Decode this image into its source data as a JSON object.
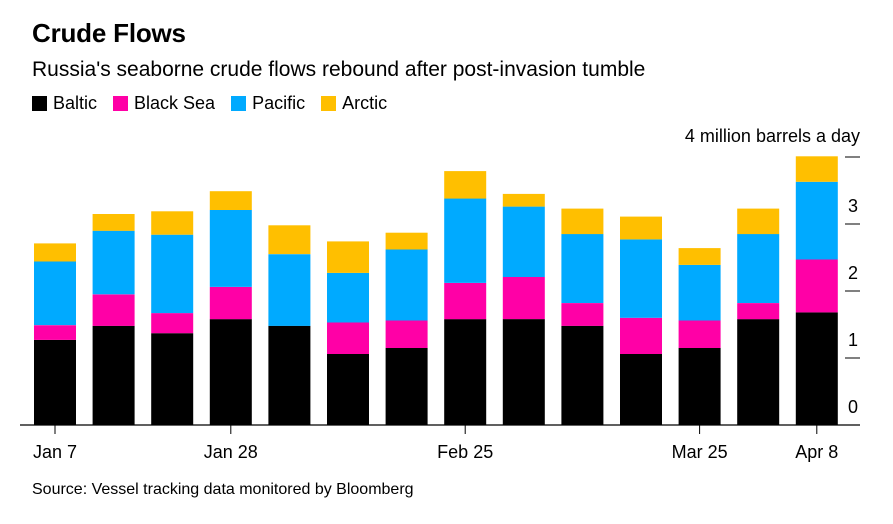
{
  "header": {
    "title": "Crude Flows",
    "subtitle": "Russia's seaborne crude flows rebound after post-invasion tumble"
  },
  "source": "Source: Vessel tracking data monitored by Bloomberg",
  "chart_data": {
    "type": "bar",
    "stacked": true,
    "unit_label": "4 million barrels a day",
    "y_ticks": [
      0,
      1,
      2,
      3
    ],
    "ylim": [
      0,
      4
    ],
    "grid": false,
    "legend_position": "top-left",
    "x_tick_labels": [
      {
        "index": 0,
        "label": "Jan 7"
      },
      {
        "index": 3,
        "label": "Jan 28"
      },
      {
        "index": 7,
        "label": "Feb 25"
      },
      {
        "index": 11,
        "label": "Mar 25"
      },
      {
        "index": 13,
        "label": "Apr 8"
      }
    ],
    "series": [
      {
        "name": "Baltic",
        "color": "#000000",
        "values": [
          1.27,
          1.48,
          1.37,
          1.58,
          1.48,
          1.06,
          1.15,
          1.58,
          1.58,
          1.48,
          1.06,
          1.15,
          1.58,
          1.68
        ]
      },
      {
        "name": "Black Sea",
        "color": "#ff00a6",
        "values": [
          0.22,
          0.47,
          0.3,
          0.48,
          0.0,
          0.47,
          0.41,
          0.54,
          0.63,
          0.34,
          0.54,
          0.41,
          0.24,
          0.79
        ]
      },
      {
        "name": "Pacific",
        "color": "#00aaff",
        "values": [
          0.95,
          0.95,
          1.17,
          1.15,
          1.07,
          0.74,
          1.06,
          1.26,
          1.05,
          1.03,
          1.17,
          0.83,
          1.03,
          1.16
        ]
      },
      {
        "name": "Arctic",
        "color": "#ffbf00",
        "values": [
          0.27,
          0.25,
          0.35,
          0.28,
          0.43,
          0.47,
          0.25,
          0.41,
          0.19,
          0.38,
          0.34,
          0.25,
          0.38,
          0.38
        ]
      }
    ]
  }
}
